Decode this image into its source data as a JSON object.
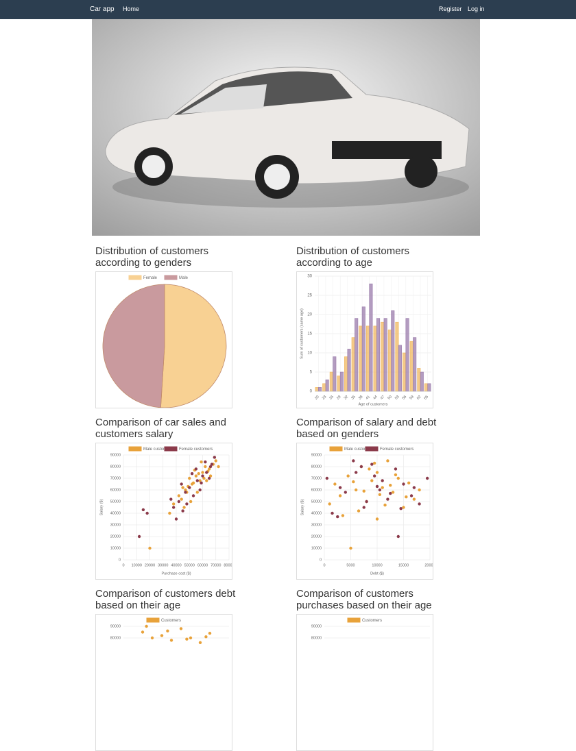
{
  "nav": {
    "brand": "Car app",
    "links": [
      "Home"
    ],
    "right": [
      "Register",
      "Log in"
    ]
  },
  "chart_data": [
    {
      "type": "pie",
      "title": "Distribution of customers according to genders",
      "categories": [
        "Female",
        "Male"
      ],
      "values": [
        51,
        49
      ],
      "colors": [
        "#f8d193",
        "#c99a9e"
      ],
      "legend": "top"
    },
    {
      "type": "bar",
      "title": "Distribution of customers according to age",
      "y_label": "Sum of customers (same age)",
      "x_label": "Age of customers",
      "categories": [
        "20",
        "23",
        "26",
        "29",
        "32",
        "35",
        "38",
        "41",
        "44",
        "47",
        "50",
        "53",
        "56",
        "59",
        "62",
        "65"
      ],
      "series": [
        {
          "color": "#f0b860",
          "values": [
            1,
            2,
            5,
            4,
            9,
            14,
            17,
            17,
            17,
            18,
            16,
            18,
            10,
            13,
            6,
            2
          ]
        },
        {
          "color": "#9a7bab",
          "values": [
            1,
            3,
            9,
            5,
            11,
            19,
            22,
            28,
            19,
            19,
            21,
            12,
            19,
            14,
            5,
            2
          ]
        }
      ],
      "ylim": [
        0,
        30
      ],
      "yticks": [
        0,
        5,
        10,
        15,
        20,
        25,
        30
      ],
      "grid": true
    },
    {
      "type": "scatter",
      "title": "Comparison of car sales and customers salary",
      "x_label": "Purchase cost ($)",
      "y_label": "Salary ($)",
      "legend": "top",
      "series": [
        {
          "name": "Male customers",
          "color": "#e8a23a",
          "x": [
            20000,
            42000,
            45000,
            48000,
            50000,
            52000,
            55000,
            58000,
            60000,
            62000,
            65000,
            68000,
            70000,
            38000,
            44000,
            47000,
            53000,
            57000,
            61000,
            64000,
            35000,
            49000,
            56000,
            59000,
            66000,
            72000,
            51000,
            46000,
            54000,
            63000
          ],
          "y": [
            10000,
            55000,
            62000,
            58000,
            70000,
            65000,
            72000,
            68000,
            75000,
            80000,
            78000,
            82000,
            85000,
            48000,
            52000,
            60000,
            66000,
            74000,
            70000,
            76000,
            40000,
            63000,
            58000,
            84000,
            72000,
            80000,
            50000,
            45000,
            77000,
            68000
          ]
        },
        {
          "name": "Female customers",
          "color": "#8b3a4a",
          "x": [
            12000,
            15000,
            18000,
            38000,
            42000,
            47000,
            50000,
            53000,
            56000,
            60000,
            63000,
            66000,
            69000,
            44000,
            48000,
            52000,
            58000,
            62000,
            40000,
            55000,
            65000,
            36000,
            45000,
            59000,
            67000
          ],
          "y": [
            20000,
            43000,
            40000,
            45000,
            50000,
            58000,
            62000,
            55000,
            68000,
            72000,
            75000,
            80000,
            88000,
            65000,
            48000,
            74000,
            60000,
            84000,
            35000,
            78000,
            70000,
            52000,
            42000,
            66000,
            82000
          ]
        }
      ],
      "xlim": [
        0,
        80000
      ],
      "xticks": [
        0,
        10000,
        20000,
        30000,
        40000,
        50000,
        60000,
        70000,
        80000
      ],
      "ylim": [
        0,
        90000
      ],
      "yticks": [
        0,
        10000,
        20000,
        30000,
        40000,
        50000,
        60000,
        70000,
        80000,
        90000
      ],
      "grid": true
    },
    {
      "type": "scatter",
      "title": "Comparison of salary and debt based on genders",
      "x_label": "Debt ($)",
      "y_label": "Salary ($)",
      "legend": "top",
      "series": [
        {
          "name": "Male customers",
          "color": "#e8a23a",
          "x": [
            5000,
            1000,
            2000,
            3000,
            4500,
            6000,
            7000,
            8000,
            9000,
            10000,
            11000,
            12000,
            13000,
            14000,
            15000,
            16000,
            17000,
            18000,
            6500,
            8500,
            10500,
            12500,
            3500,
            9500,
            11500,
            7500,
            13500,
            5500,
            15500,
            10000
          ],
          "y": [
            10000,
            48000,
            65000,
            55000,
            72000,
            60000,
            80000,
            50000,
            68000,
            75000,
            62000,
            85000,
            58000,
            70000,
            45000,
            66000,
            52000,
            60000,
            42000,
            78000,
            56000,
            64000,
            38000,
            83000,
            47000,
            59000,
            73000,
            67000,
            54000,
            35000
          ]
        },
        {
          "name": "Female customers",
          "color": "#8b3a4a",
          "x": [
            500,
            1500,
            4000,
            6000,
            7500,
            9000,
            10500,
            12000,
            13500,
            15000,
            16500,
            18000,
            19500,
            3000,
            5500,
            8000,
            11000,
            14000,
            17000,
            2500,
            9500,
            12500,
            14500,
            7000,
            10000
          ],
          "y": [
            70000,
            40000,
            58000,
            75000,
            45000,
            82000,
            60000,
            52000,
            78000,
            65000,
            55000,
            48000,
            70000,
            62000,
            85000,
            50000,
            68000,
            20000,
            62000,
            37000,
            72000,
            57000,
            44000,
            80000,
            63000
          ]
        }
      ],
      "xlim": [
        0,
        20000
      ],
      "xticks": [
        0,
        5000,
        10000,
        15000,
        20000
      ],
      "ylim": [
        0,
        90000
      ],
      "yticks": [
        0,
        10000,
        20000,
        30000,
        40000,
        50000,
        60000,
        70000,
        80000,
        90000
      ],
      "grid": true
    },
    {
      "type": "scatter",
      "title": "Comparison of customers debt based on their age",
      "legend": "top",
      "series": [
        {
          "name": "Customers",
          "color": "#e8a23a",
          "x": [
            25,
            30,
            35,
            40,
            45,
            50,
            55,
            60,
            27,
            38,
            48,
            58
          ],
          "y": [
            85000,
            80000,
            82000,
            78000,
            88000,
            80000,
            76000,
            84000,
            90000,
            86000,
            79000,
            81000
          ]
        }
      ],
      "xlim": [
        15,
        70
      ],
      "ylim": [
        0,
        90000
      ],
      "yticks": [
        80000,
        90000
      ],
      "grid": true
    },
    {
      "type": "scatter",
      "title": "Comparison of customers purchases based on their age",
      "legend": "top",
      "series": [
        {
          "name": "Customers",
          "color": "#e8a23a",
          "x": [],
          "y": []
        }
      ],
      "xlim": [
        15,
        70
      ],
      "ylim": [
        0,
        90000
      ],
      "yticks": [
        80000,
        90000
      ],
      "grid": true
    }
  ]
}
